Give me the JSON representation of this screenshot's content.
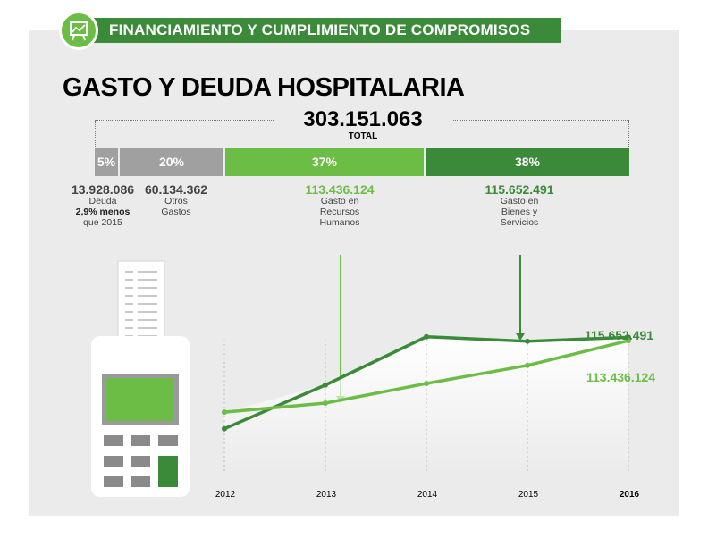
{
  "header": {
    "title": "FINANCIAMIENTO Y CUMPLIMIENTO DE COMPROMISOS",
    "icon": "presentation-chart-icon"
  },
  "title": "GASTO Y DEUDA HOSPITALARIA",
  "total": {
    "value": "303.151.063",
    "label": "TOTAL"
  },
  "breakdown": [
    {
      "pct": "5%",
      "value": "13.928.086",
      "desc1": "Deuda",
      "desc2": "2,9% menos",
      "desc3": "que 2015",
      "color": "#a0a0a0"
    },
    {
      "pct": "20%",
      "value": "60.134.362",
      "desc1": "Otros",
      "desc2": "Gastos",
      "color": "#a0a0a0"
    },
    {
      "pct": "37%",
      "value": "113.436.124",
      "desc1": "Gasto en",
      "desc2": "Recursos",
      "desc3": "Humanos",
      "color": "#6cbd45"
    },
    {
      "pct": "38%",
      "value": "115.652.491",
      "desc1": "Gasto en",
      "desc2": "Bienes y",
      "desc3": "Servicios",
      "color": "#3b8a3a"
    }
  ],
  "chart_data": {
    "type": "line",
    "x": [
      "2012",
      "2013",
      "2014",
      "2015",
      "2016"
    ],
    "series": [
      {
        "values": [
          55000000,
          84000000,
          116000000,
          113000000,
          115652491
        ],
        "color": "#3b8a3a"
      },
      {
        "values": [
          66000000,
          72000000,
          85000000,
          97000000,
          113436124
        ],
        "color": "#6cbd45"
      }
    ],
    "end_labels": [
      "115.652.491",
      "113.436.124"
    ],
    "icon": "cash-register-icon"
  }
}
